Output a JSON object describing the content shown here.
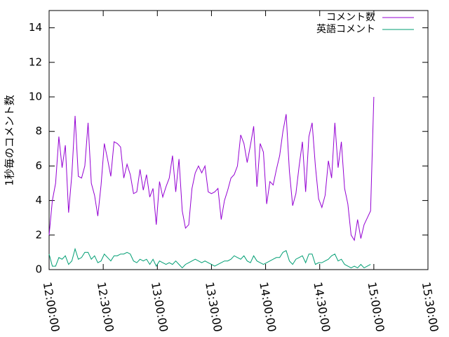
{
  "chart_data": {
    "type": "line",
    "ylabel": "1秒毎のコメント数",
    "x": [
      "12:00:00",
      "12:01:48",
      "12:03:36",
      "12:05:24",
      "12:07:12",
      "12:09:00",
      "12:10:48",
      "12:12:36",
      "12:14:24",
      "12:16:12",
      "12:18:00",
      "12:19:48",
      "12:21:36",
      "12:23:24",
      "12:25:12",
      "12:27:00",
      "12:28:48",
      "12:30:36",
      "12:32:24",
      "12:34:12",
      "12:36:00",
      "12:37:48",
      "12:39:36",
      "12:41:24",
      "12:43:12",
      "12:45:00",
      "12:46:48",
      "12:48:36",
      "12:50:24",
      "12:52:12",
      "12:54:00",
      "12:55:48",
      "12:57:36",
      "12:59:24",
      "13:01:12",
      "13:03:00",
      "13:04:48",
      "13:06:36",
      "13:08:24",
      "13:10:12",
      "13:12:00",
      "13:13:48",
      "13:15:36",
      "13:17:24",
      "13:19:12",
      "13:21:00",
      "13:22:48",
      "13:24:36",
      "13:26:24",
      "13:28:12",
      "13:30:00",
      "13:31:48",
      "13:33:36",
      "13:35:24",
      "13:37:12",
      "13:39:00",
      "13:40:48",
      "13:42:36",
      "13:44:24",
      "13:46:12",
      "13:48:00",
      "13:49:48",
      "13:51:36",
      "13:53:24",
      "13:55:12",
      "13:57:00",
      "13:58:48",
      "14:00:36",
      "14:02:24",
      "14:04:12",
      "14:06:00",
      "14:07:48",
      "14:09:36",
      "14:11:24",
      "14:13:12",
      "14:15:00",
      "14:16:48",
      "14:18:36",
      "14:20:24",
      "14:22:12",
      "14:24:00",
      "14:25:48",
      "14:27:36",
      "14:29:24",
      "14:31:12",
      "14:33:00",
      "14:34:48",
      "14:36:36",
      "14:38:24",
      "14:40:12",
      "14:42:00",
      "14:43:48",
      "14:45:36",
      "14:47:24",
      "14:49:12",
      "14:51:00",
      "14:52:48",
      "14:54:36",
      "14:56:24",
      "14:58:12",
      "15:00:00"
    ],
    "series": [
      {
        "name": "コメント数",
        "color": "#9400d3",
        "values": [
          2.0,
          4,
          5,
          7.7,
          5.9,
          7.2,
          3.3,
          5.5,
          8.9,
          5.4,
          5.3,
          6,
          8.5,
          5,
          4.3,
          3.1,
          4.9,
          7.3,
          6.4,
          5.4,
          7.4,
          7.3,
          7.1,
          5.3,
          6.1,
          5.5,
          4.4,
          4.5,
          5.8,
          4.6,
          5.5,
          4.2,
          4.7,
          2.6,
          5.1,
          4.2,
          4.8,
          5.3,
          6.6,
          4.5,
          6.4,
          3.4,
          2.4,
          2.6,
          4.7,
          5.6,
          6.0,
          5.6,
          6.0,
          4.5,
          4.4,
          4.5,
          4.7,
          2.9,
          4.0,
          4.6,
          5.3,
          5.5,
          6.0,
          7.8,
          7.3,
          6.2,
          7.2,
          8.3,
          4.8,
          7.3,
          6.8,
          3.8,
          5.1,
          4.9,
          5.8,
          6.6,
          8.0,
          9.0,
          5.7,
          3.7,
          4.4,
          6.0,
          7.4,
          4.5,
          7.7,
          8.5,
          6.0,
          4.1,
          3.6,
          4.3,
          6.3,
          5.3,
          8.5,
          5.9,
          7.4,
          4.7,
          3.8,
          2.0,
          1.7,
          2.9,
          1.8,
          2.6,
          3.0,
          3.4,
          10.0
        ]
      },
      {
        "name": "英語コメント",
        "color": "#009e73",
        "values": [
          0.9,
          0.2,
          0.2,
          0.7,
          0.6,
          0.8,
          0.3,
          0.5,
          1.2,
          0.6,
          0.7,
          1.0,
          1.0,
          0.6,
          0.8,
          0.4,
          0.5,
          0.9,
          0.7,
          0.5,
          0.8,
          0.8,
          0.9,
          0.9,
          1.0,
          0.9,
          0.5,
          0.4,
          0.6,
          0.5,
          0.6,
          0.3,
          0.6,
          0.2,
          0.5,
          0.4,
          0.3,
          0.4,
          0.3,
          0.5,
          0.3,
          0.1,
          0.3,
          0.4,
          0.5,
          0.6,
          0.5,
          0.4,
          0.5,
          0.4,
          0.3,
          0.2,
          0.3,
          0.4,
          0.5,
          0.5,
          0.6,
          0.8,
          0.7,
          0.6,
          0.8,
          0.5,
          0.4,
          0.8,
          0.5,
          0.4,
          0.3,
          0.4,
          0.5,
          0.6,
          0.7,
          0.7,
          1.0,
          1.1,
          0.5,
          0.3,
          0.6,
          0.7,
          0.8,
          0.4,
          0.9,
          0.9,
          0.3,
          0.4,
          0.4,
          0.5,
          0.6,
          0.8,
          0.9,
          0.5,
          0.6,
          0.3,
          0.2,
          0.1,
          0.2,
          0.1,
          0.3,
          0.1,
          0.2,
          0.3,
          null
        ]
      }
    ],
    "xlim": [
      "12:00:00",
      "15:30:00"
    ],
    "xticks": [
      "12:00:00",
      "12:30:00",
      "13:00:00",
      "13:30:00",
      "14:00:00",
      "14:30:00",
      "15:00:00",
      "15:30:00"
    ],
    "ylim": [
      0,
      15
    ],
    "yticks": [
      0,
      2,
      4,
      6,
      8,
      10,
      12,
      14
    ],
    "legend": "upper right"
  }
}
